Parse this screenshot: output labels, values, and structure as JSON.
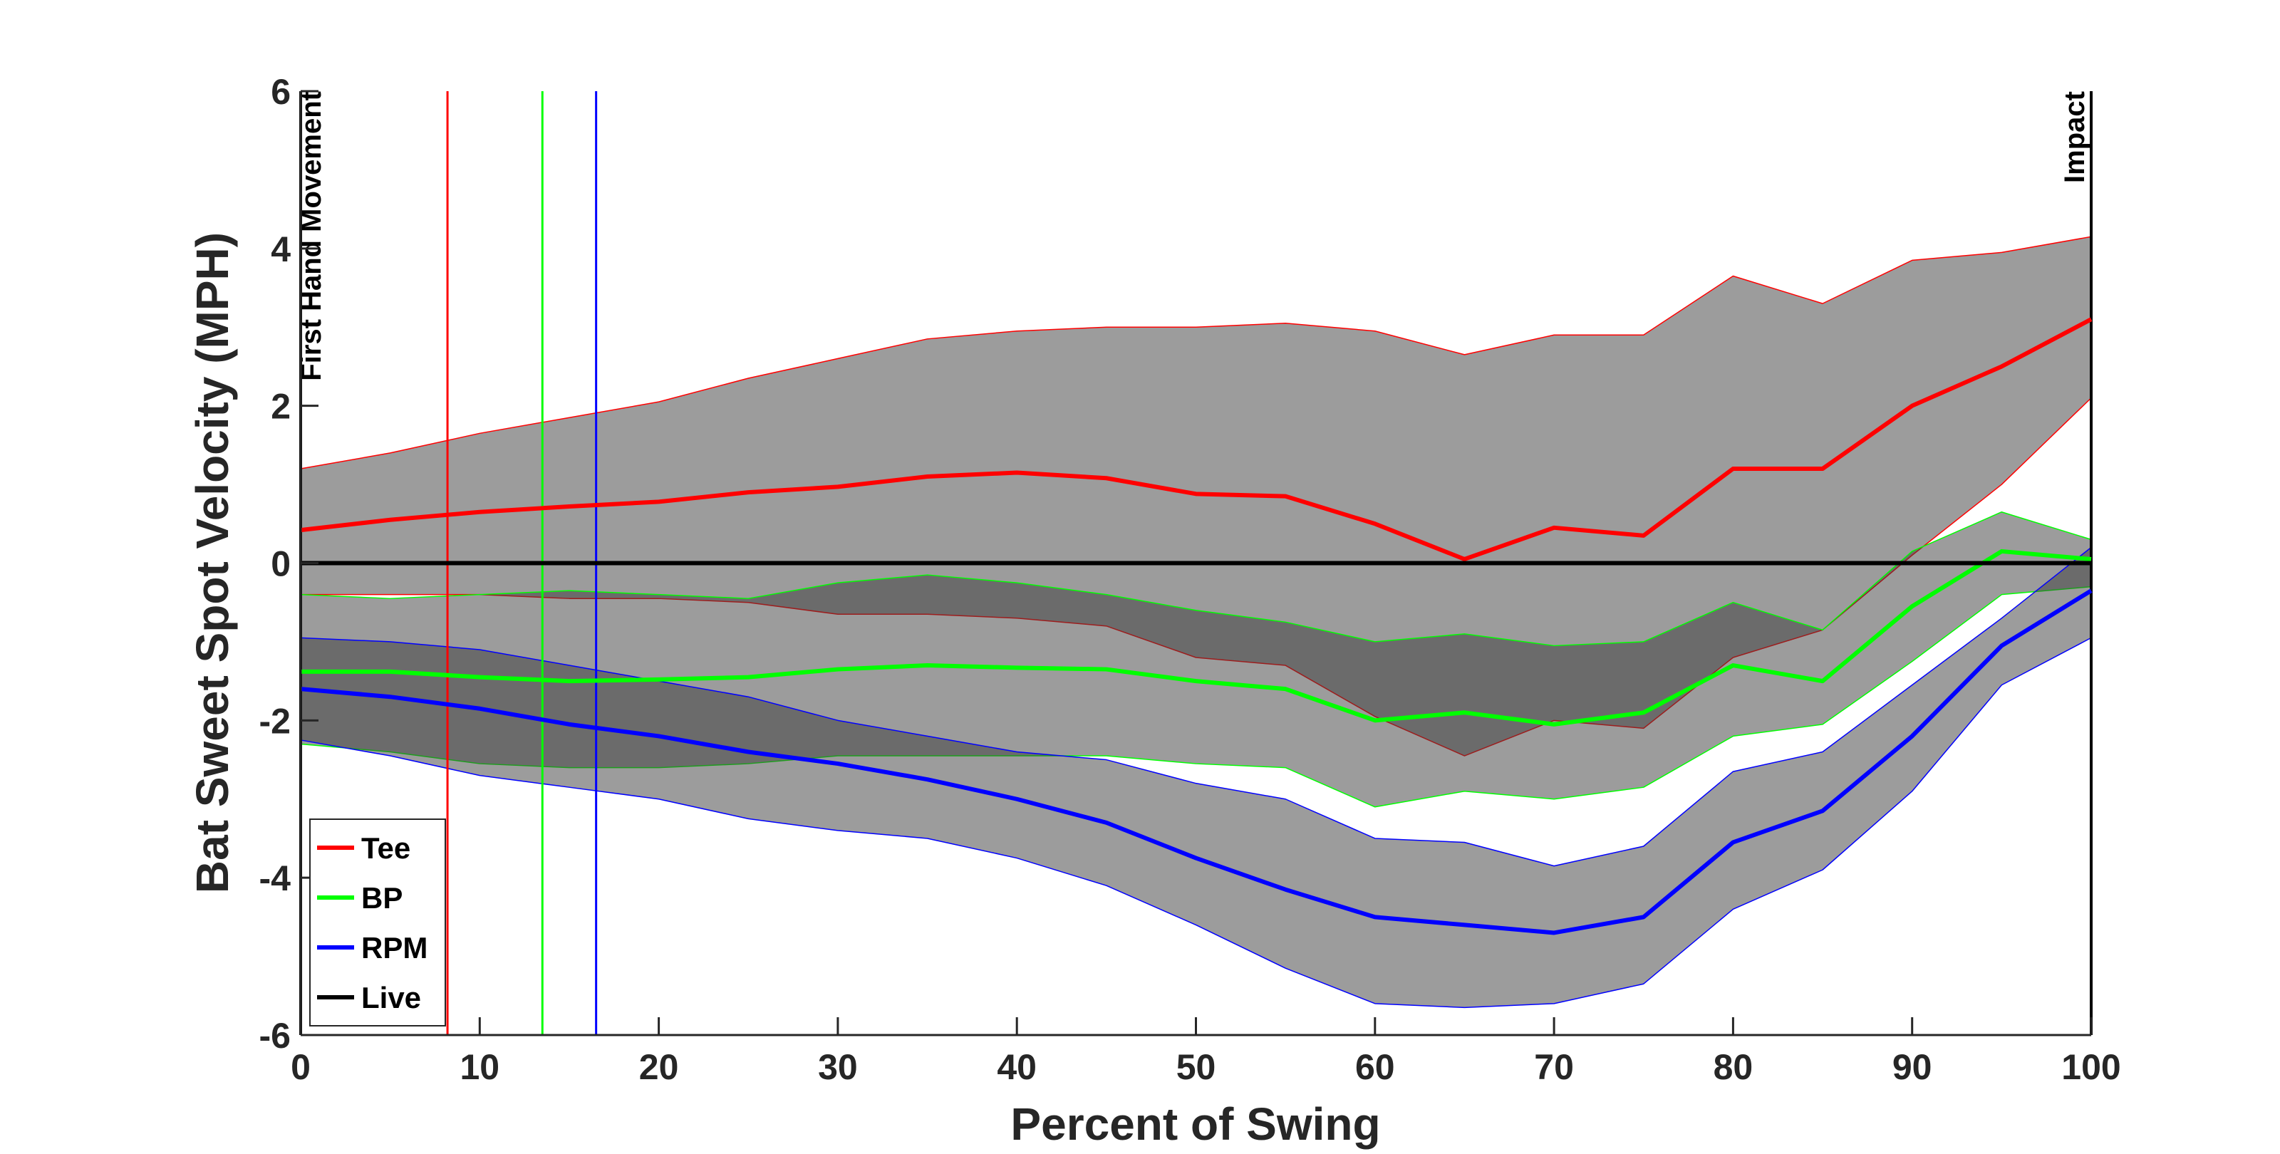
{
  "chart_data": {
    "type": "line",
    "xlabel": "Percent of Swing",
    "ylabel": "Bat Sweet Spot Velocity (MPH)",
    "x": [
      0,
      5,
      10,
      15,
      20,
      25,
      30,
      35,
      40,
      45,
      50,
      55,
      60,
      65,
      70,
      75,
      80,
      85,
      90,
      95,
      100
    ],
    "xlim": [
      0,
      100
    ],
    "xticks": [
      0,
      10,
      20,
      30,
      40,
      50,
      60,
      70,
      80,
      90,
      100
    ],
    "ylim": [
      -6,
      6
    ],
    "yticks": [
      -6,
      -4,
      -2,
      0,
      2,
      4,
      6
    ],
    "legend": "lower left",
    "band_color": "#3a3a3a",
    "series": [
      {
        "name": "Tee",
        "color": "#ff0000",
        "values": [
          0.42,
          0.55,
          0.65,
          0.72,
          0.78,
          0.9,
          0.97,
          1.1,
          1.15,
          1.08,
          0.88,
          0.85,
          0.5,
          0.05,
          0.45,
          0.35,
          1.2,
          1.2,
          2.0,
          2.5,
          3.1
        ],
        "upper": [
          1.2,
          1.4,
          1.65,
          1.85,
          2.05,
          2.35,
          2.6,
          2.85,
          2.95,
          3.0,
          3.0,
          3.05,
          2.95,
          2.65,
          2.9,
          2.9,
          3.65,
          3.3,
          3.85,
          3.95,
          4.15
        ],
        "lower": [
          -0.4,
          -0.4,
          -0.4,
          -0.45,
          -0.45,
          -0.5,
          -0.65,
          -0.65,
          -0.7,
          -0.8,
          -1.2,
          -1.3,
          -1.95,
          -2.45,
          -2.0,
          -2.1,
          -1.2,
          -0.85,
          0.1,
          1.0,
          2.1
        ]
      },
      {
        "name": "BP",
        "color": "#00ff00",
        "values": [
          -1.38,
          -1.38,
          -1.45,
          -1.5,
          -1.48,
          -1.45,
          -1.35,
          -1.3,
          -1.33,
          -1.35,
          -1.5,
          -1.6,
          -2.0,
          -1.9,
          -2.05,
          -1.9,
          -1.3,
          -1.5,
          -0.55,
          0.15,
          0.05
        ],
        "upper": [
          -0.4,
          -0.45,
          -0.4,
          -0.35,
          -0.4,
          -0.45,
          -0.25,
          -0.15,
          -0.25,
          -0.4,
          -0.6,
          -0.75,
          -1.0,
          -0.9,
          -1.05,
          -1.0,
          -0.5,
          -0.85,
          0.15,
          0.65,
          0.3
        ],
        "lower": [
          -2.3,
          -2.4,
          -2.55,
          -2.6,
          -2.6,
          -2.55,
          -2.45,
          -2.45,
          -2.45,
          -2.45,
          -2.55,
          -2.6,
          -3.1,
          -2.9,
          -3.0,
          -2.85,
          -2.2,
          -2.05,
          -1.25,
          -0.4,
          -0.3
        ]
      },
      {
        "name": "RPM",
        "color": "#0000ff",
        "values": [
          -1.6,
          -1.7,
          -1.85,
          -2.05,
          -2.2,
          -2.4,
          -2.55,
          -2.75,
          -3.0,
          -3.3,
          -3.75,
          -4.15,
          -4.5,
          -4.6,
          -4.7,
          -4.5,
          -3.55,
          -3.15,
          -2.2,
          -1.05,
          -0.35
        ],
        "upper": [
          -0.95,
          -1.0,
          -1.1,
          -1.3,
          -1.5,
          -1.7,
          -2.0,
          -2.2,
          -2.4,
          -2.5,
          -2.8,
          -3.0,
          -3.5,
          -3.55,
          -3.85,
          -3.6,
          -2.65,
          -2.4,
          -1.55,
          -0.7,
          0.2
        ],
        "lower": [
          -2.25,
          -2.45,
          -2.7,
          -2.85,
          -3.0,
          -3.25,
          -3.4,
          -3.5,
          -3.75,
          -4.1,
          -4.6,
          -5.15,
          -5.6,
          -5.65,
          -5.6,
          -5.35,
          -4.4,
          -3.9,
          -2.9,
          -1.55,
          -0.95
        ]
      },
      {
        "name": "Live",
        "color": "#000000",
        "values": [
          0,
          0,
          0,
          0,
          0,
          0,
          0,
          0,
          0,
          0,
          0,
          0,
          0,
          0,
          0,
          0,
          0,
          0,
          0,
          0,
          0
        ]
      }
    ],
    "events": [
      {
        "x": 8.2,
        "color": "#ff0000"
      },
      {
        "x": 13.5,
        "color": "#00ff00"
      },
      {
        "x": 16.5,
        "color": "#0000ff"
      }
    ],
    "annotations": [
      {
        "text": "First Hand Movement",
        "x": 0
      },
      {
        "text": "Impact",
        "x": 100
      }
    ]
  }
}
